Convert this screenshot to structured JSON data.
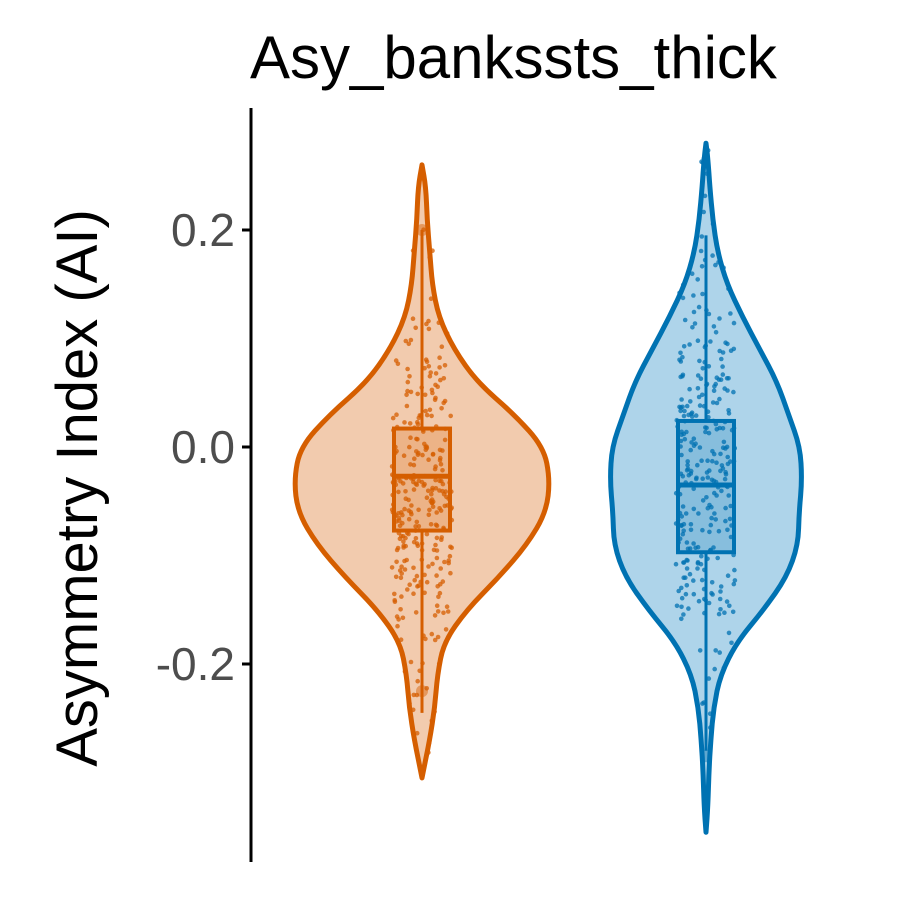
{
  "chart_data": {
    "type": "violin",
    "title": "Asy_bankssts_thick",
    "xlabel": "",
    "ylabel": "Asymmetry Index (AI)",
    "ylim": [
      -0.38,
      0.31
    ],
    "yticks": [
      {
        "value": 0.2,
        "label": "0.2"
      },
      {
        "value": 0.0,
        "label": "0.0"
      },
      {
        "value": -0.2,
        "label": "-0.2"
      }
    ],
    "grid": false,
    "legend": "none",
    "series": [
      {
        "color": "#D55E00",
        "fill": "#F2CBAE",
        "n_points": 300,
        "box": {
          "q1": -0.077,
          "median": -0.027,
          "q3": 0.017,
          "whisker_low": -0.245,
          "whisker_high": 0.2
        },
        "violin": {
          "y": [
            -0.305,
            -0.27,
            -0.24,
            -0.21,
            -0.18,
            -0.15,
            -0.12,
            -0.09,
            -0.06,
            -0.03,
            0.0,
            0.03,
            0.06,
            0.09,
            0.12,
            0.15,
            0.18,
            0.21,
            0.24,
            0.26
          ],
          "width": [
            0.0,
            0.06,
            0.1,
            0.12,
            0.17,
            0.35,
            0.6,
            0.82,
            0.97,
            1.0,
            0.95,
            0.72,
            0.43,
            0.25,
            0.13,
            0.08,
            0.06,
            0.04,
            0.03,
            0.0
          ]
        },
        "outliers": [
          0.2,
          -0.225
        ]
      },
      {
        "color": "#0072B2",
        "fill": "#AED4EA",
        "n_points": 300,
        "box": {
          "q1": -0.097,
          "median": -0.035,
          "q3": 0.024,
          "whisker_low": -0.28,
          "whisker_high": 0.195
        },
        "violin": {
          "y": [
            -0.355,
            -0.33,
            -0.3,
            -0.27,
            -0.24,
            -0.21,
            -0.18,
            -0.15,
            -0.12,
            -0.09,
            -0.06,
            -0.03,
            0.0,
            0.03,
            0.06,
            0.09,
            0.12,
            0.15,
            0.18,
            0.21,
            0.24,
            0.265,
            0.28
          ],
          "width": [
            0.0,
            0.02,
            0.03,
            0.05,
            0.08,
            0.15,
            0.32,
            0.6,
            0.84,
            0.96,
            0.97,
            1.0,
            0.98,
            0.86,
            0.74,
            0.56,
            0.38,
            0.22,
            0.12,
            0.07,
            0.04,
            0.02,
            0.0
          ]
        },
        "outliers": [
          -0.285
        ]
      }
    ]
  }
}
